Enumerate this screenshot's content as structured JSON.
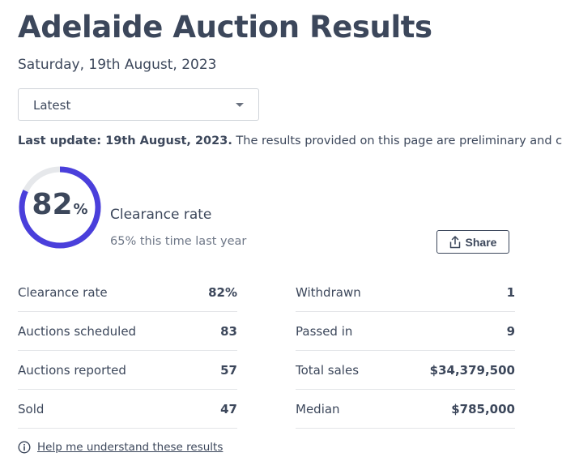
{
  "page": {
    "title": "Adelaide Auction Results",
    "date": "Saturday, 19th August, 2023"
  },
  "filter": {
    "selected": "Latest",
    "icon": "chevron-down-icon"
  },
  "notice": {
    "bold": "Last update: 19th August, 2023.",
    "text": " The results provided on this page are preliminary and current"
  },
  "clearance": {
    "value": "82",
    "unit": "%",
    "progress": 0.82,
    "label": "Clearance rate",
    "comparison": "65% this time last year",
    "ring_color": "#4a3fdb",
    "track_color": "#e6e8eb"
  },
  "share": {
    "label": "Share",
    "icon": "share-icon"
  },
  "stats_left": [
    {
      "label": "Clearance rate",
      "value": "82%"
    },
    {
      "label": "Auctions scheduled",
      "value": "83"
    },
    {
      "label": "Auctions reported",
      "value": "57"
    },
    {
      "label": "Sold",
      "value": "47"
    }
  ],
  "stats_right": [
    {
      "label": "Withdrawn",
      "value": "1"
    },
    {
      "label": "Passed in",
      "value": "9"
    },
    {
      "label": "Total sales",
      "value": "$34,379,500"
    },
    {
      "label": "Median",
      "value": "$785,000"
    }
  ],
  "help": {
    "label": "Help me understand these results",
    "icon": "info-icon"
  }
}
